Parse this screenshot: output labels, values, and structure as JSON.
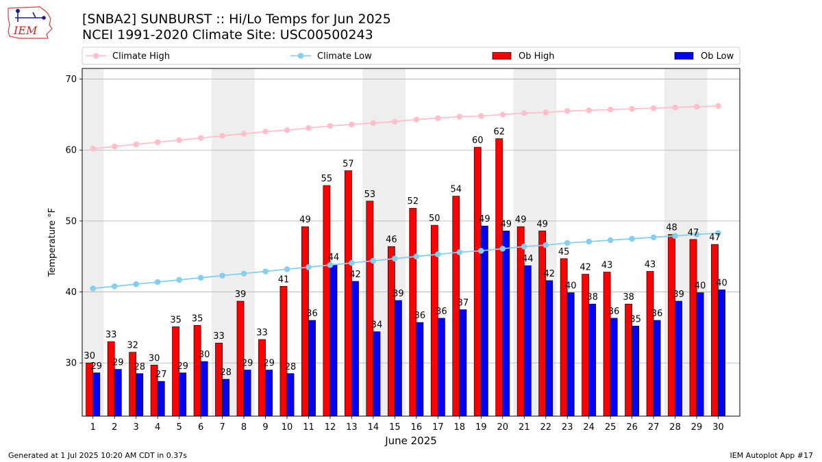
{
  "header": {
    "title_line1": "[SNBA2] SUNBURST :: Hi/Lo Temps for Jun 2025",
    "title_line2": "NCEI 1991-2020 Climate Site: USC00500243",
    "logo_text": "IEM"
  },
  "footer": {
    "generated": "Generated at 1 Jul 2025 10:20 AM CDT in 0.37s",
    "app": "IEM Autoplot App #17"
  },
  "colors": {
    "ob_high": "#ff0000",
    "ob_low": "#0000ff",
    "climate_high": "#ffc0cb",
    "climate_low": "#87ceeb",
    "weekend_shade": "#eeeeee",
    "grid": "#b0b0b0"
  },
  "chart_data": {
    "type": "bar",
    "xlabel": "June 2025",
    "ylabel": "Temperature °F",
    "ylim": [
      22.5,
      71.5
    ],
    "yticks": [
      30,
      40,
      50,
      60,
      70
    ],
    "grid": "horizontal",
    "legend_position": "top",
    "categories": [
      "1",
      "2",
      "3",
      "4",
      "5",
      "6",
      "7",
      "8",
      "9",
      "10",
      "11",
      "12",
      "13",
      "14",
      "15",
      "16",
      "17",
      "18",
      "19",
      "20",
      "21",
      "22",
      "23",
      "24",
      "25",
      "26",
      "27",
      "28",
      "29",
      "30"
    ],
    "shaded_days": [
      1,
      7,
      8,
      14,
      15,
      21,
      22,
      28,
      29
    ],
    "series": [
      {
        "name": "Ob High",
        "kind": "bar",
        "values": [
          30,
          33,
          32,
          30,
          35,
          35,
          33,
          39,
          33,
          41,
          49,
          55,
          57,
          53,
          46,
          52,
          50,
          54,
          60,
          62,
          49,
          49,
          45,
          42,
          43,
          38,
          43,
          48,
          47,
          47
        ],
        "heights": [
          30,
          33,
          31.5,
          29.7,
          35.1,
          35.3,
          32.8,
          38.7,
          33.3,
          40.8,
          49.2,
          55,
          57.1,
          52.8,
          46.4,
          51.8,
          49.4,
          53.5,
          60.4,
          61.6,
          49.2,
          48.6,
          44.7,
          42.5,
          42.8,
          38.3,
          42.9,
          48.1,
          47.4,
          46.7
        ]
      },
      {
        "name": "Ob Low",
        "kind": "bar",
        "values": [
          29,
          29,
          28,
          27,
          29,
          30,
          28,
          29,
          29,
          28,
          36,
          44,
          42,
          34,
          39,
          36,
          36,
          37,
          49,
          49,
          44,
          42,
          40,
          38,
          36,
          35,
          36,
          39,
          40,
          40
        ],
        "heights": [
          28.6,
          29.1,
          28.5,
          27.4,
          28.6,
          30.2,
          27.7,
          29,
          29,
          28.5,
          36,
          43.9,
          41.5,
          34.4,
          38.8,
          35.7,
          36.3,
          37.5,
          49.3,
          48.6,
          43.7,
          41.6,
          39.9,
          38.3,
          36.3,
          35.2,
          36,
          38.7,
          39.9,
          40.3
        ]
      },
      {
        "name": "Climate High",
        "kind": "line",
        "values": [
          60.2,
          60.5,
          60.8,
          61.1,
          61.4,
          61.7,
          62,
          62.3,
          62.6,
          62.8,
          63.1,
          63.4,
          63.6,
          63.8,
          64,
          64.3,
          64.5,
          64.7,
          64.8,
          65,
          65.2,
          65.3,
          65.5,
          65.6,
          65.7,
          65.8,
          65.9,
          66,
          66.1,
          66.2
        ]
      },
      {
        "name": "Climate Low",
        "kind": "line",
        "values": [
          40.5,
          40.8,
          41.1,
          41.4,
          41.7,
          42,
          42.3,
          42.6,
          42.9,
          43.2,
          43.5,
          43.8,
          44.1,
          44.4,
          44.7,
          45,
          45.3,
          45.6,
          45.8,
          46.1,
          46.4,
          46.6,
          46.9,
          47.1,
          47.3,
          47.5,
          47.7,
          47.9,
          48.1,
          48.3
        ]
      }
    ]
  }
}
